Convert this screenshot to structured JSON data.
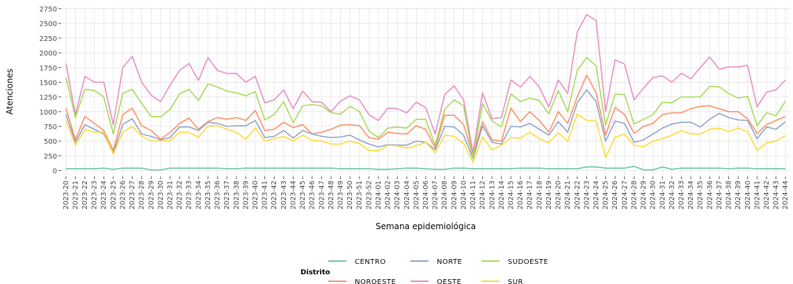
{
  "chart_data": {
    "type": "line",
    "x_label": "Semana epidemiológica",
    "y_label": "Atenciones",
    "legend_title": "Distrito",
    "categories": [
      "2023-20",
      "2023-21",
      "2023-22",
      "2023-23",
      "2023-24",
      "2023-25",
      "2023-26",
      "2023-27",
      "2023-28",
      "2023-29",
      "2023-30",
      "2023-31",
      "2023-32",
      "2023-33",
      "2023-34",
      "2023-35",
      "2023-36",
      "2023-37",
      "2023-38",
      "2023-39",
      "2023-40",
      "2023-41",
      "2023-42",
      "2023-43",
      "2023-44",
      "2023-45",
      "2023-46",
      "2023-47",
      "2023-48",
      "2023-49",
      "2023-50",
      "2023-51",
      "2023-52",
      "2024-01",
      "2024-02",
      "2024-03",
      "2024-04",
      "2024-05",
      "2024-06",
      "2024-07",
      "2024-08",
      "2024-09",
      "2024-10",
      "2024-11",
      "2024-12",
      "2024-13",
      "2024-14",
      "2024-15",
      "2024-16",
      "2024-17",
      "2024-18",
      "2024-19",
      "2024-20",
      "2024-21",
      "2024-22",
      "2024-23",
      "2024-24",
      "2024-25",
      "2024-26",
      "2024-27",
      "2024-28",
      "2024-29",
      "2024-30",
      "2024-31",
      "2024-32",
      "2024-33",
      "2024-34",
      "2024-35",
      "2024-36",
      "2024-37",
      "2024-38",
      "2024-39",
      "2024-40",
      "2024-41",
      "2024-42",
      "2024-43",
      "2024-44"
    ],
    "series": [
      {
        "name": "CENTRO",
        "color": "#66c2a5",
        "values": [
          30,
          30,
          30,
          30,
          40,
          20,
          40,
          40,
          40,
          10,
          10,
          40,
          40,
          40,
          40,
          40,
          40,
          30,
          30,
          40,
          40,
          40,
          40,
          40,
          40,
          40,
          40,
          40,
          40,
          30,
          30,
          30,
          30,
          20,
          20,
          30,
          40,
          40,
          30,
          20,
          20,
          40,
          40,
          30,
          30,
          30,
          30,
          30,
          40,
          40,
          40,
          30,
          30,
          30,
          30,
          60,
          60,
          40,
          40,
          40,
          70,
          10,
          10,
          60,
          20,
          40,
          40,
          40,
          40,
          40,
          30,
          40,
          40,
          30,
          30,
          30,
          30
        ]
      },
      {
        "name": "NOROESTE",
        "color": "#fc8d62",
        "values": [
          1060,
          520,
          920,
          800,
          680,
          340,
          950,
          1060,
          760,
          680,
          530,
          650,
          800,
          890,
          700,
          830,
          900,
          870,
          900,
          850,
          1020,
          680,
          700,
          820,
          730,
          780,
          620,
          650,
          700,
          770,
          780,
          760,
          560,
          530,
          650,
          630,
          620,
          760,
          700,
          380,
          940,
          940,
          780,
          240,
          830,
          520,
          500,
          1060,
          830,
          1000,
          850,
          650,
          1000,
          800,
          1250,
          1620,
          1320,
          600,
          1070,
          950,
          630,
          750,
          800,
          950,
          980,
          980,
          1050,
          1090,
          1100,
          1050,
          1000,
          1000,
          880,
          630,
          780,
          850,
          920
        ]
      },
      {
        "name": "NORTE",
        "color": "#8da0cb",
        "values": [
          950,
          480,
          780,
          700,
          620,
          300,
          780,
          880,
          620,
          580,
          520,
          560,
          740,
          740,
          680,
          820,
          800,
          750,
          760,
          760,
          850,
          560,
          580,
          680,
          550,
          680,
          620,
          580,
          560,
          570,
          600,
          520,
          450,
          400,
          440,
          430,
          430,
          500,
          480,
          350,
          750,
          740,
          600,
          200,
          760,
          480,
          450,
          750,
          740,
          800,
          700,
          600,
          830,
          650,
          1150,
          1370,
          1170,
          500,
          840,
          800,
          480,
          520,
          620,
          720,
          790,
          820,
          820,
          740,
          870,
          970,
          900,
          860,
          850,
          540,
          740,
          700,
          830
        ]
      },
      {
        "name": "OESTE",
        "color": "#e78ac3",
        "values": [
          1820,
          950,
          1600,
          1500,
          1500,
          780,
          1750,
          1940,
          1500,
          1280,
          1170,
          1450,
          1700,
          1820,
          1530,
          1920,
          1700,
          1650,
          1650,
          1500,
          1600,
          1150,
          1200,
          1370,
          1050,
          1350,
          1170,
          1160,
          1000,
          1180,
          1270,
          1200,
          950,
          850,
          1060,
          1050,
          980,
          1160,
          1070,
          620,
          1290,
          1440,
          1200,
          300,
          1320,
          880,
          900,
          1540,
          1420,
          1600,
          1420,
          1080,
          1540,
          1310,
          2350,
          2650,
          2550,
          1000,
          1880,
          1810,
          1200,
          1400,
          1580,
          1610,
          1500,
          1650,
          1560,
          1750,
          1930,
          1720,
          1760,
          1760,
          1790,
          1080,
          1330,
          1370,
          1540
        ]
      },
      {
        "name": "SUDOESTE",
        "color": "#a6d854",
        "values": [
          1580,
          900,
          1380,
          1360,
          1250,
          620,
          1310,
          1380,
          1140,
          920,
          910,
          1040,
          1300,
          1380,
          1190,
          1470,
          1420,
          1350,
          1320,
          1270,
          1340,
          860,
          950,
          1170,
          810,
          1100,
          1120,
          1100,
          980,
          960,
          1090,
          1000,
          670,
          560,
          720,
          740,
          720,
          870,
          870,
          420,
          1040,
          1200,
          1100,
          210,
          1140,
          840,
          740,
          1300,
          1170,
          1230,
          1190,
          960,
          1360,
          1000,
          1700,
          1920,
          1780,
          770,
          1300,
          1290,
          790,
          870,
          950,
          1160,
          1150,
          1250,
          1250,
          1250,
          1430,
          1420,
          1310,
          1230,
          1260,
          760,
          980,
          930,
          1180
        ]
      },
      {
        "name": "SUR",
        "color": "#ffd92f",
        "values": [
          850,
          430,
          700,
          650,
          650,
          280,
          650,
          750,
          580,
          500,
          500,
          510,
          650,
          650,
          560,
          760,
          760,
          700,
          650,
          530,
          720,
          500,
          540,
          580,
          500,
          600,
          510,
          500,
          450,
          450,
          500,
          460,
          340,
          330,
          430,
          420,
          380,
          420,
          480,
          300,
          600,
          580,
          460,
          140,
          570,
          350,
          430,
          560,
          550,
          650,
          540,
          470,
          640,
          500,
          960,
          850,
          840,
          220,
          570,
          620,
          430,
          400,
          500,
          540,
          600,
          680,
          620,
          620,
          700,
          720,
          660,
          720,
          660,
          340,
          470,
          500,
          590
        ]
      }
    ],
    "ylim": [
      -100,
      2780
    ],
    "yticks": [
      0,
      250,
      500,
      750,
      1000,
      1250,
      1500,
      1750,
      2000,
      2250,
      2500,
      2750
    ],
    "grid": true
  }
}
